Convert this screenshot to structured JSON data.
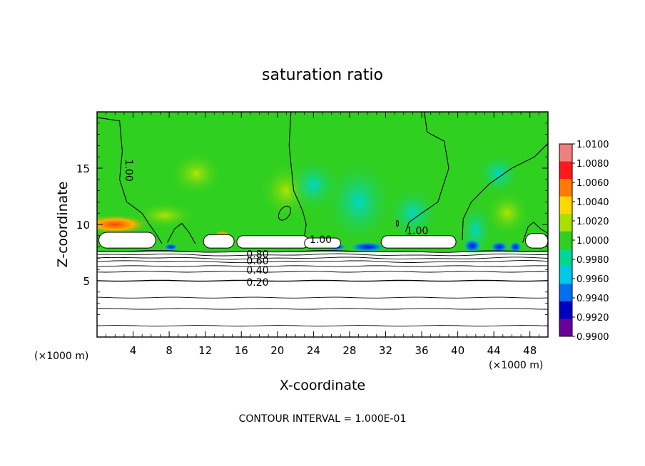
{
  "chart_data": {
    "type": "heatmap",
    "title": "saturation ratio",
    "xlabel": "X-coordinate",
    "ylabel": "Z-coordinate",
    "x_unit_left": "(×1000 m)",
    "x_unit_right": "(×1000 m)",
    "xlim": [
      0,
      50
    ],
    "ylim": [
      0,
      20
    ],
    "xticks": [
      4,
      8,
      12,
      16,
      20,
      24,
      28,
      32,
      36,
      40,
      44,
      48
    ],
    "yticks": [
      5,
      10,
      15
    ],
    "footer": "CONTOUR INTERVAL = 1.000E-01",
    "colorbar": {
      "ticks": [
        "1.0100",
        "1.0080",
        "1.0060",
        "1.0040",
        "1.0020",
        "1.0000",
        "0.9980",
        "0.9960",
        "0.9940",
        "0.9920",
        "0.9900"
      ],
      "colors": [
        "#f08080",
        "#ff1a1a",
        "#ff7a00",
        "#ffd800",
        "#a8e000",
        "#30d020",
        "#00d890",
        "#00c8e8",
        "#0070f0",
        "#0000c0",
        "#6a009a"
      ]
    },
    "contour_labels": [
      {
        "text": "1.00",
        "x": 3.5,
        "y": 14.8,
        "rotate": 90
      },
      {
        "text": "1.00",
        "x": 24.8,
        "y": 8.6
      },
      {
        "text": "1.00",
        "x": 35.5,
        "y": 9.4
      },
      {
        "text": "0.80",
        "x": 17.8,
        "y": 7.3
      },
      {
        "text": "0.60",
        "x": 17.8,
        "y": 6.7
      },
      {
        "text": "0.40",
        "x": 17.8,
        "y": 5.9
      },
      {
        "text": "0.20",
        "x": 17.8,
        "y": 4.8
      }
    ],
    "dry_lines": [
      1.0,
      2.5,
      3.5,
      5.0,
      5.8,
      6.3,
      6.7,
      7.0,
      7.3,
      7.6
    ],
    "cloud_patches": [
      {
        "x0": 0.2,
        "x1": 6.5,
        "y0": 7.9,
        "y1": 9.3
      },
      {
        "x0": 11.8,
        "x1": 15.2,
        "y0": 7.9,
        "y1": 9.1
      },
      {
        "x0": 15.5,
        "x1": 23.5,
        "y0": 7.9,
        "y1": 9.0
      },
      {
        "x0": 23.0,
        "x1": 27.0,
        "y0": 7.9,
        "y1": 8.8
      },
      {
        "x0": 31.5,
        "x1": 39.8,
        "y0": 7.9,
        "y1": 9.0
      },
      {
        "x0": 47.5,
        "x1": 50.0,
        "y0": 7.9,
        "y1": 9.2
      }
    ]
  }
}
